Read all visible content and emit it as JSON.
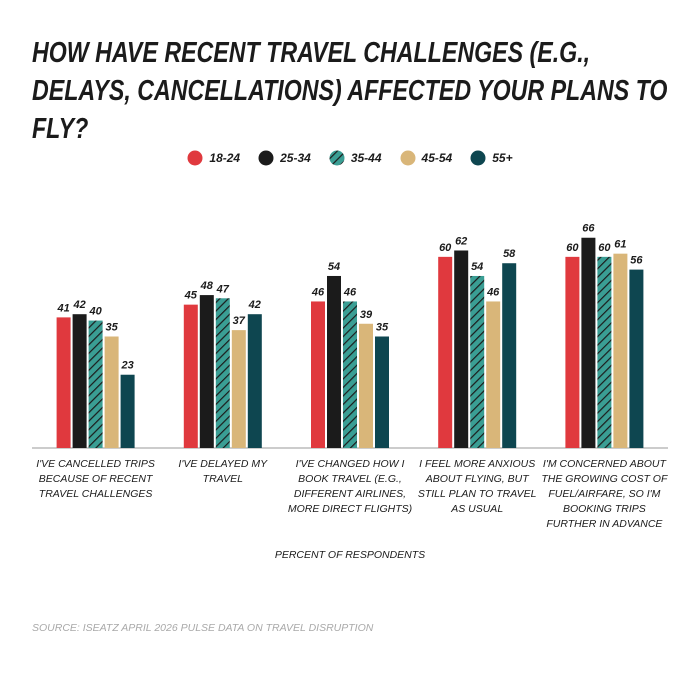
{
  "chart_data": {
    "type": "bar",
    "title": "HOW HAVE RECENT TRAVEL CHALLENGES (E.G., DELAYS, CANCELLATIONS) AFFECTED YOUR PLANS TO FLY?",
    "categories": [
      "I'VE CANCELLED TRIPS BECAUSE OF RECENT TRAVEL CHALLENGES",
      "I'VE DELAYED MY TRAVEL",
      "I'VE CHANGED HOW I BOOK TRAVEL (E.G., DIFFERENT AIRLINES, MORE DIRECT FLIGHTS)",
      "I FEEL MORE ANXIOUS ABOUT FLYING, BUT STILL PLAN TO TRAVEL AS USUAL",
      "I'M CONCERNED ABOUT THE GROWING COST OF FUEL/AIRFARE, SO I'M BOOKING TRIPS FURTHER IN ADVANCE"
    ],
    "series": [
      {
        "name": "18-24",
        "color": "#e0393e",
        "values": [
          41,
          45,
          46,
          60,
          60
        ]
      },
      {
        "name": "25-34",
        "color": "#1b1b1b",
        "values": [
          42,
          48,
          54,
          62,
          66
        ]
      },
      {
        "name": "35-44",
        "color": "#3a9e94",
        "pattern": "hatch",
        "values": [
          40,
          47,
          46,
          54,
          60
        ]
      },
      {
        "name": "45-54",
        "color": "#d9b679",
        "values": [
          35,
          37,
          39,
          46,
          61
        ]
      },
      {
        "name": "55+",
        "color": "#0e4650",
        "values": [
          23,
          42,
          35,
          58,
          56
        ]
      }
    ],
    "xlabel": "PERCENT OF RESPONDENTS",
    "source": "SOURCE: ISEATZ APRIL 2026 PULSE DATA ON TRAVEL DISRUPTION",
    "ylim": [
      0,
      70
    ]
  }
}
